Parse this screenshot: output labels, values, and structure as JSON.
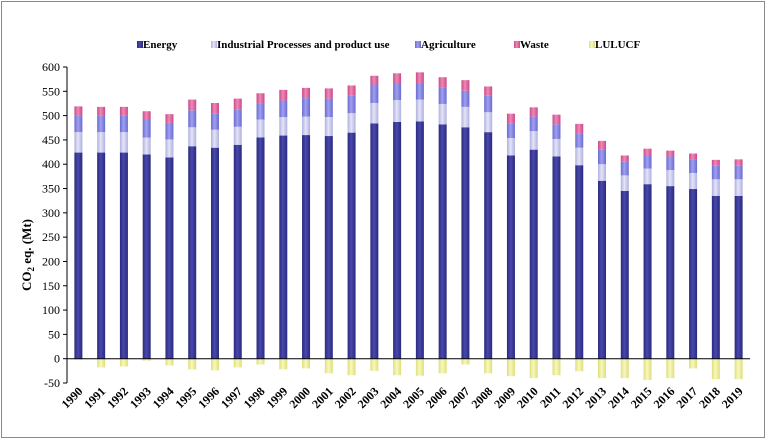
{
  "chart_data": {
    "type": "bar",
    "stacked": true,
    "title": "",
    "xlabel": "",
    "ylabel": "CO2 eq. (Mt)",
    "ylabel_main": "CO",
    "ylabel_sub": "2",
    "ylabel_rest": " eq. (Mt)",
    "ylim": [
      -50,
      600
    ],
    "yticks": [
      -50,
      0,
      50,
      100,
      150,
      200,
      250,
      300,
      350,
      400,
      450,
      500,
      550,
      600
    ],
    "legend_position": "top",
    "categories": [
      "1990",
      "1991",
      "1992",
      "1993",
      "1994",
      "1995",
      "1996",
      "1997",
      "1998",
      "1999",
      "2000",
      "2001",
      "2002",
      "2003",
      "2004",
      "2005",
      "2006",
      "2007",
      "2008",
      "2009",
      "2010",
      "2011",
      "2012",
      "2013",
      "2014",
      "2015",
      "2016",
      "2017",
      "2018",
      "2019"
    ],
    "series": [
      {
        "name": "Energy",
        "color": "#3b3b96",
        "values": [
          424,
          424,
          424,
          420,
          414,
          437,
          434,
          440,
          455,
          459,
          460,
          458,
          465,
          484,
          487,
          488,
          482,
          476,
          466,
          418,
          430,
          416,
          398,
          366,
          345,
          359,
          355,
          349,
          335,
          335
        ]
      },
      {
        "name": "Industrial Processes and product use",
        "color": "#c9c9ee",
        "values": [
          42,
          42,
          42,
          35,
          37,
          39,
          37,
          37,
          37,
          38,
          38,
          39,
          40,
          42,
          45,
          45,
          42,
          42,
          41,
          36,
          38,
          36,
          36,
          34,
          32,
          32,
          33,
          33,
          34,
          34
        ]
      },
      {
        "name": "Agriculture",
        "color": "#8585e0",
        "values": [
          35,
          34,
          34,
          36,
          34,
          35,
          33,
          36,
          32,
          34,
          38,
          38,
          36,
          38,
          33,
          33,
          33,
          33,
          34,
          30,
          30,
          30,
          30,
          30,
          28,
          28,
          28,
          28,
          28,
          28
        ]
      },
      {
        "name": "Waste",
        "color": "#e0629c",
        "values": [
          18,
          18,
          18,
          18,
          18,
          22,
          22,
          22,
          22,
          22,
          21,
          21,
          21,
          18,
          22,
          23,
          22,
          22,
          19,
          20,
          19,
          20,
          19,
          18,
          13,
          13,
          12,
          12,
          12,
          13
        ]
      },
      {
        "name": "LULUCF",
        "color": "#eeee96",
        "values": [
          -2,
          -18,
          -16,
          -4,
          -14,
          -22,
          -24,
          -18,
          -12,
          -22,
          -20,
          -30,
          -34,
          -25,
          -34,
          -35,
          -30,
          -12,
          -30,
          -36,
          -40,
          -34,
          -26,
          -40,
          -40,
          -44,
          -40,
          -20,
          -42,
          -42
        ]
      }
    ]
  }
}
